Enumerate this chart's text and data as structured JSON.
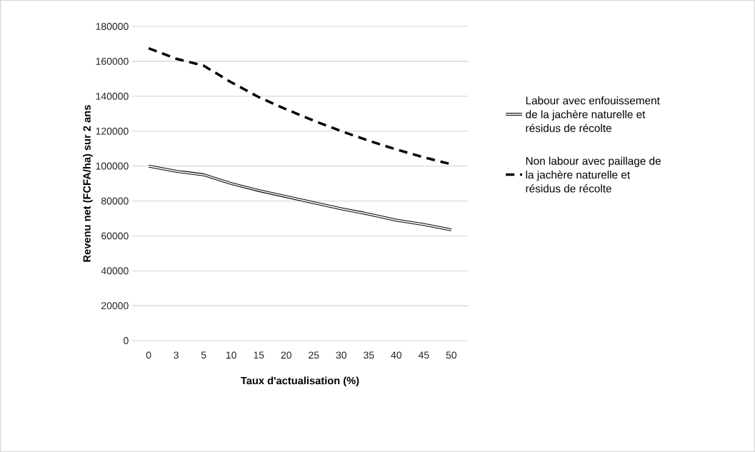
{
  "chart_data": {
    "type": "line",
    "xlabel": "Taux d'actualisation (%)",
    "ylabel": "Revenu net (FCFA/ha) sur 2 ans",
    "categories": [
      "0",
      "3",
      "5",
      "10",
      "15",
      "20",
      "25",
      "30",
      "35",
      "40",
      "45",
      "50"
    ],
    "series": [
      {
        "name": "Labour avec enfouissement de la jachère naturelle et résidus de récolte",
        "color": "#000000",
        "line_style": "solid",
        "values": [
          100000,
          97000,
          95000,
          90000,
          86000,
          82500,
          79000,
          75500,
          72500,
          69000,
          66500,
          63500
        ]
      },
      {
        "name": "Non labour avec paillage de la jachère naturelle et résidus de récolte",
        "color": "#000000",
        "line_style": "dashed",
        "values": [
          167500,
          161500,
          157500,
          148000,
          139500,
          132500,
          126000,
          120000,
          114500,
          109500,
          105000,
          101000
        ]
      }
    ],
    "ylim": [
      0,
      180000
    ],
    "yticks": [
      0,
      20000,
      40000,
      60000,
      80000,
      100000,
      120000,
      140000,
      160000,
      180000
    ],
    "grid": "y",
    "legend": "right"
  }
}
